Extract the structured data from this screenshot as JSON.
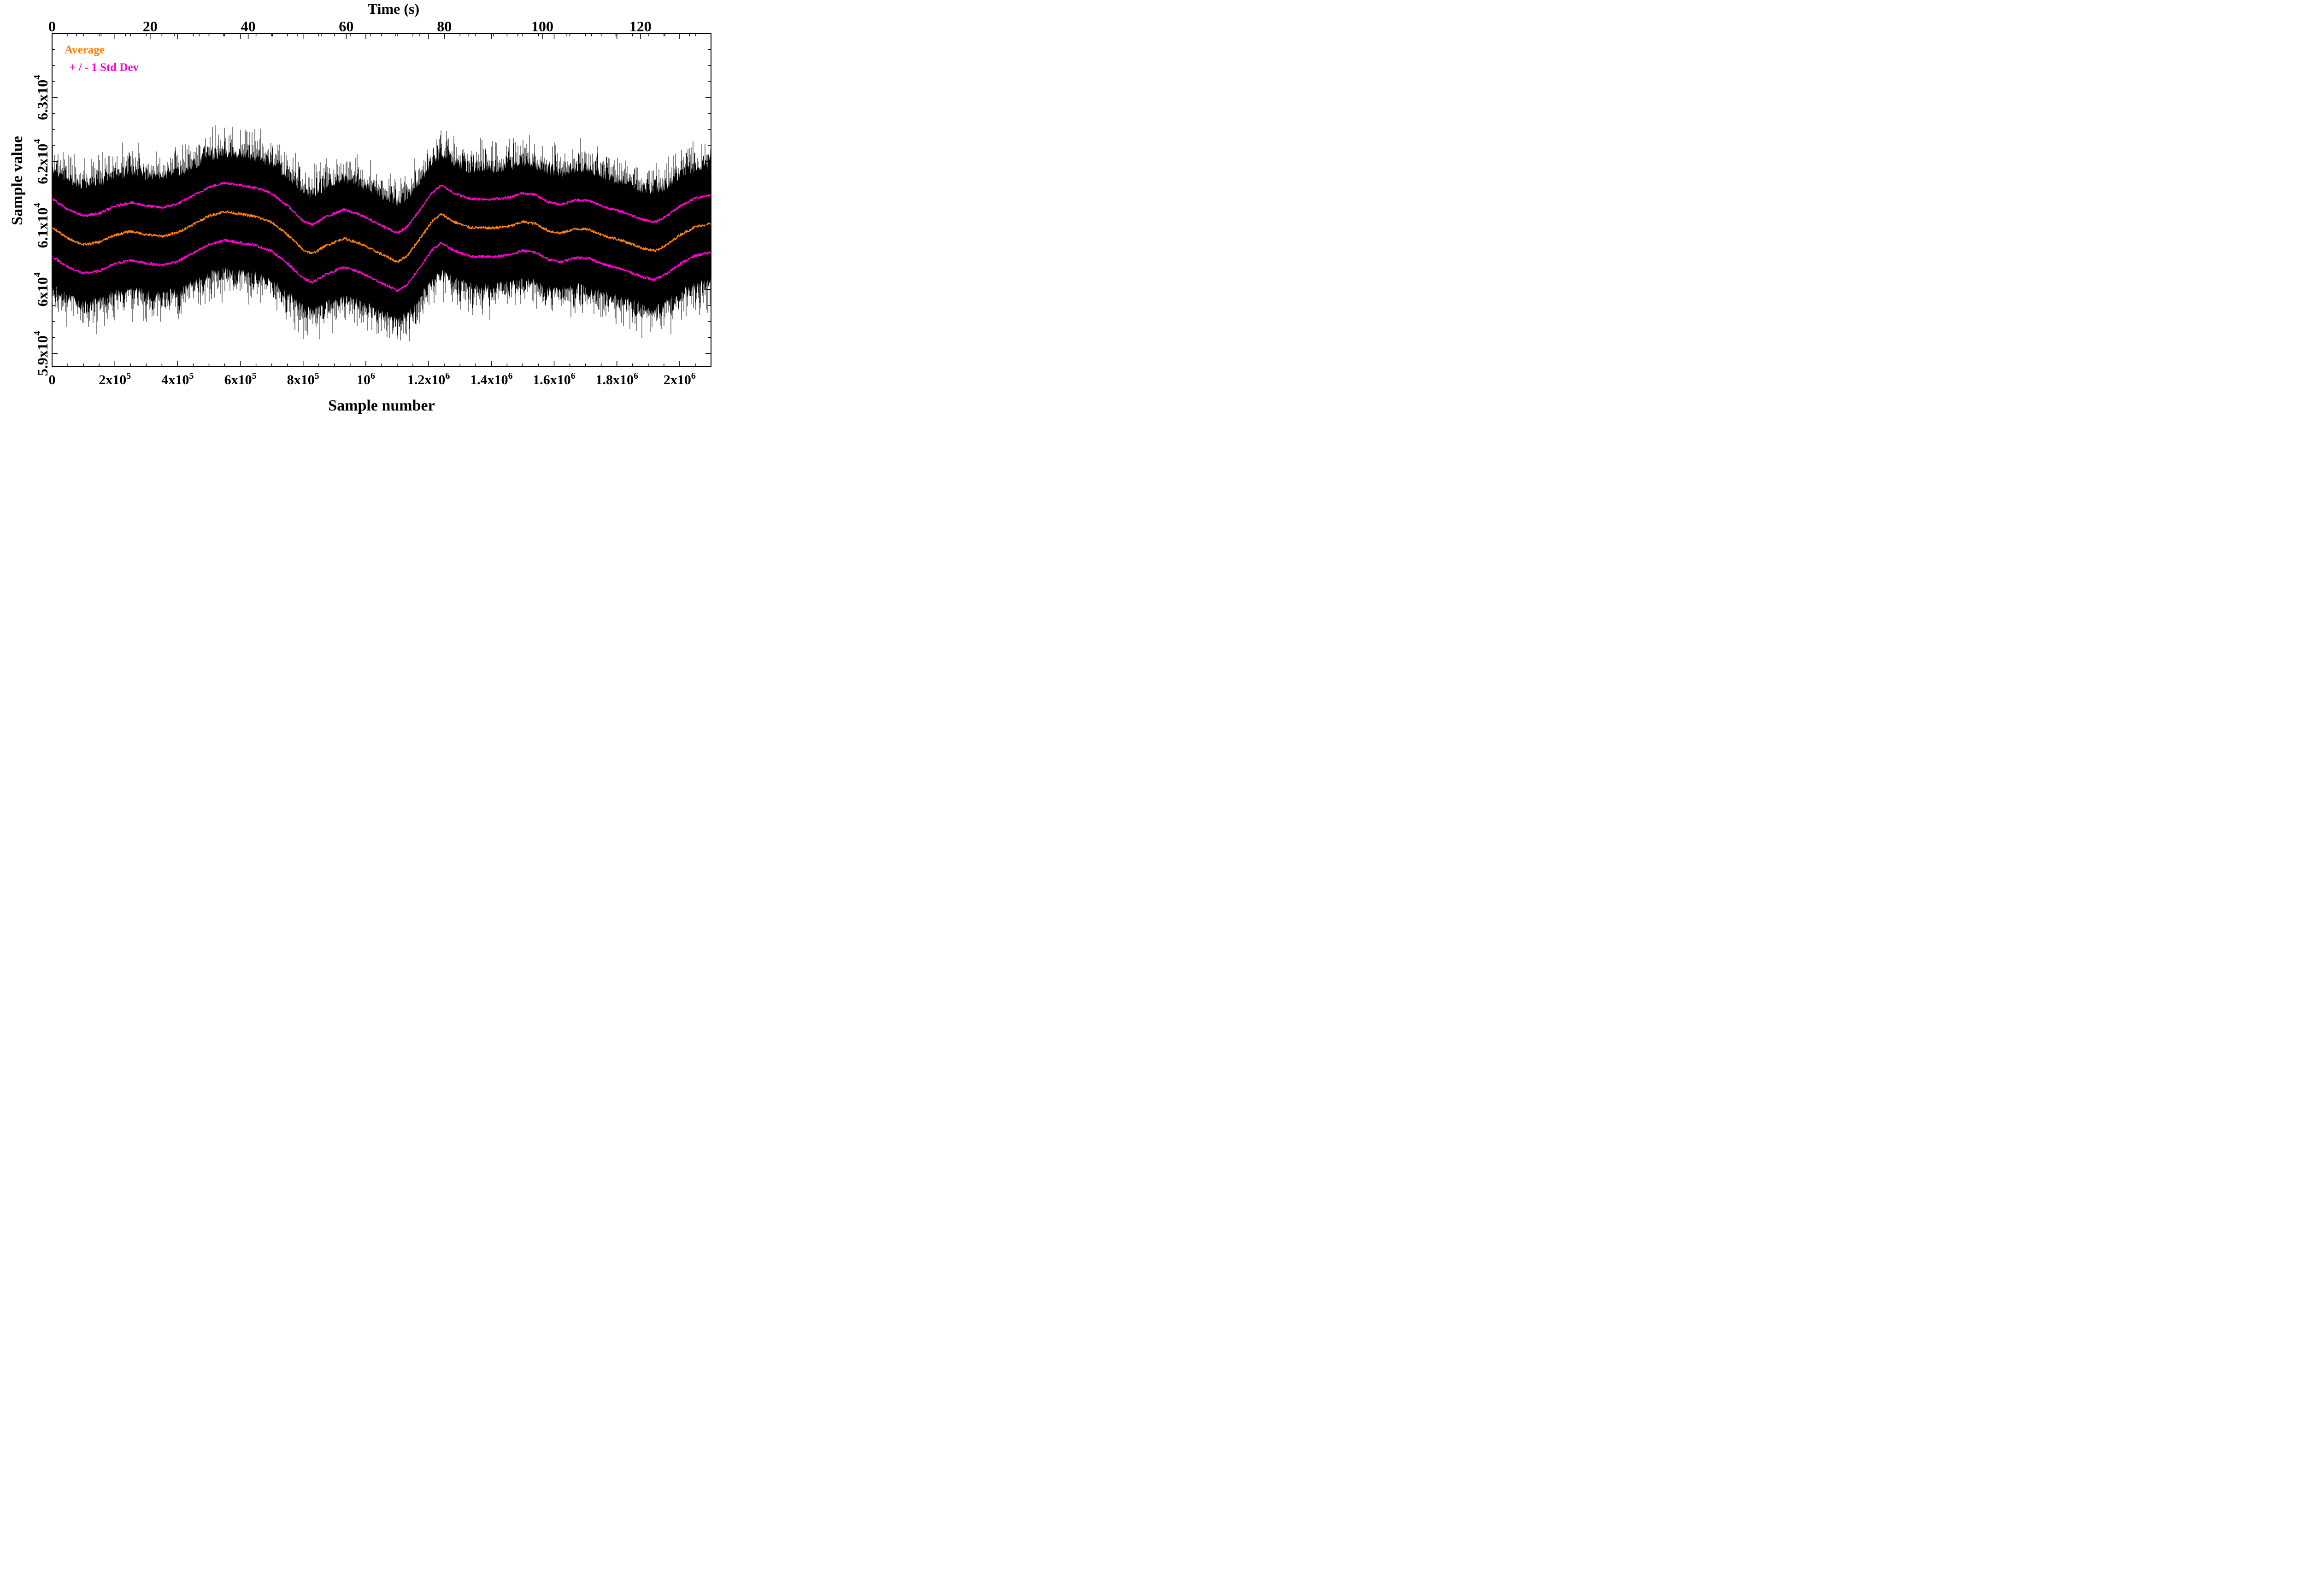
{
  "chart_data": {
    "type": "line",
    "title": "",
    "xlabel": "Sample number",
    "ylabel": "Sample value",
    "x2label": "Time (s)",
    "xlim": [
      0,
      2100000
    ],
    "ylim": [
      58800,
      64000
    ],
    "x2lim": [
      0,
      134.4
    ],
    "x_ticks": [
      {
        "value": 0,
        "base": "0",
        "exp": ""
      },
      {
        "value": 200000,
        "base": "2x10",
        "exp": "5"
      },
      {
        "value": 400000,
        "base": "4x10",
        "exp": "5"
      },
      {
        "value": 600000,
        "base": "6x10",
        "exp": "5"
      },
      {
        "value": 800000,
        "base": "8x10",
        "exp": "5"
      },
      {
        "value": 1000000,
        "base": "10",
        "exp": "6"
      },
      {
        "value": 1200000,
        "base": "1.2x10",
        "exp": "6"
      },
      {
        "value": 1400000,
        "base": "1.4x10",
        "exp": "6"
      },
      {
        "value": 1600000,
        "base": "1.6x10",
        "exp": "6"
      },
      {
        "value": 1800000,
        "base": "1.8x10",
        "exp": "6"
      },
      {
        "value": 2000000,
        "base": "2x10",
        "exp": "6"
      }
    ],
    "y_ticks": [
      {
        "value": 59000,
        "base": "5.9x10",
        "exp": "4"
      },
      {
        "value": 60000,
        "base": "6x10",
        "exp": "4"
      },
      {
        "value": 61000,
        "base": "6.1x10",
        "exp": "4"
      },
      {
        "value": 62000,
        "base": "6.2x10",
        "exp": "4"
      },
      {
        "value": 63000,
        "base": "6.3x10",
        "exp": "4"
      }
    ],
    "x2_ticks": [
      "0",
      "20",
      "40",
      "60",
      "80",
      "100",
      "120"
    ],
    "x2_tick_values": [
      0,
      20,
      40,
      60,
      80,
      100,
      120
    ],
    "legend": [
      {
        "label": "Average",
        "color": "#ff7f0e"
      },
      {
        "label": "+ / - 1 Std Dev",
        "color": "#ff00cc"
      }
    ],
    "legend_position": "top-left",
    "series": [
      {
        "name": "Average",
        "color": "#ff7f0e",
        "x": [
          0,
          50000,
          100000,
          150000,
          200000,
          250000,
          300000,
          350000,
          400000,
          450000,
          500000,
          550000,
          600000,
          650000,
          700000,
          750000,
          800000,
          830000,
          870000,
          930000,
          980000,
          1030000,
          1080000,
          1100000,
          1130000,
          1170000,
          1210000,
          1240000,
          1280000,
          1330000,
          1400000,
          1460000,
          1500000,
          1540000,
          1580000,
          1620000,
          1670000,
          1710000,
          1760000,
          1820000,
          1880000,
          1920000,
          1960000,
          2000000,
          2050000,
          2100000
        ],
        "values": [
          60970,
          60800,
          60700,
          60740,
          60850,
          60910,
          60860,
          60830,
          60890,
          61020,
          61150,
          61220,
          61180,
          61140,
          61050,
          60860,
          60620,
          60560,
          60680,
          60800,
          60720,
          60600,
          60480,
          60430,
          60520,
          60780,
          61060,
          61180,
          61060,
          60970,
          60960,
          60990,
          61060,
          61030,
          60920,
          60880,
          60950,
          60940,
          60840,
          60760,
          60650,
          60600,
          60700,
          60850,
          60980,
          61030
        ]
      },
      {
        "name": "+1 Std Dev",
        "color": "#ff00cc",
        "x": [
          0,
          50000,
          100000,
          150000,
          200000,
          250000,
          300000,
          350000,
          400000,
          450000,
          500000,
          550000,
          600000,
          650000,
          700000,
          750000,
          800000,
          830000,
          870000,
          930000,
          980000,
          1030000,
          1080000,
          1100000,
          1130000,
          1170000,
          1210000,
          1240000,
          1280000,
          1330000,
          1400000,
          1460000,
          1500000,
          1540000,
          1580000,
          1620000,
          1670000,
          1710000,
          1760000,
          1820000,
          1880000,
          1920000,
          1960000,
          2000000,
          2050000,
          2100000
        ],
        "values": [
          61420,
          61250,
          61150,
          61190,
          61300,
          61360,
          61310,
          61280,
          61340,
          61470,
          61600,
          61670,
          61630,
          61590,
          61500,
          61310,
          61070,
          61010,
          61130,
          61250,
          61170,
          61050,
          60930,
          60880,
          60970,
          61230,
          61510,
          61630,
          61510,
          61420,
          61410,
          61440,
          61510,
          61480,
          61370,
          61330,
          61400,
          61390,
          61290,
          61210,
          61100,
          61050,
          61150,
          61300,
          61430,
          61480
        ]
      },
      {
        "name": "-1 Std Dev",
        "color": "#ff00cc",
        "x": [
          0,
          50000,
          100000,
          150000,
          200000,
          250000,
          300000,
          350000,
          400000,
          450000,
          500000,
          550000,
          600000,
          650000,
          700000,
          750000,
          800000,
          830000,
          870000,
          930000,
          980000,
          1030000,
          1080000,
          1100000,
          1130000,
          1170000,
          1210000,
          1240000,
          1280000,
          1330000,
          1400000,
          1460000,
          1500000,
          1540000,
          1580000,
          1620000,
          1670000,
          1710000,
          1760000,
          1820000,
          1880000,
          1920000,
          1960000,
          2000000,
          2050000,
          2100000
        ],
        "values": [
          60520,
          60350,
          60250,
          60290,
          60400,
          60460,
          60410,
          60380,
          60440,
          60570,
          60700,
          60770,
          60730,
          60690,
          60600,
          60410,
          60170,
          60110,
          60230,
          60350,
          60270,
          60150,
          60030,
          59980,
          60070,
          60330,
          60610,
          60730,
          60610,
          60520,
          60510,
          60540,
          60610,
          60580,
          60470,
          60430,
          60500,
          60490,
          60390,
          60310,
          60200,
          60150,
          60250,
          60400,
          60530,
          60580
        ]
      }
    ],
    "noise_band": {
      "name": "Raw samples",
      "color": "#000000",
      "typical_half_width": 1000,
      "max_half_width": 1450
    }
  }
}
